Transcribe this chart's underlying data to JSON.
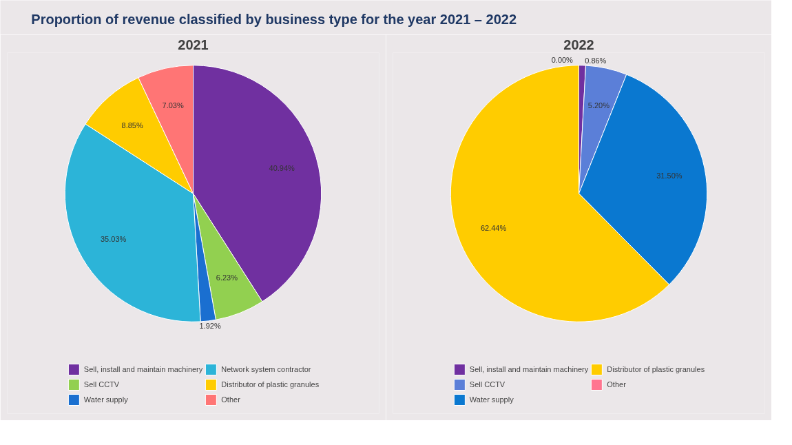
{
  "chart_data": [
    {
      "type": "pie",
      "title": "Proportion of revenue classified by business type for the year 2021 – 2022",
      "subtitle": "2021",
      "categories": [
        "Sell, install and maintain machinery",
        "Sell CCTV",
        "Water supply",
        "Network system contractor",
        "Distributor of plastic granules",
        "Other"
      ],
      "values": [
        40.94,
        6.23,
        1.92,
        35.03,
        8.85,
        7.03
      ],
      "value_labels": [
        "40.94%",
        "6.23%",
        "1.92%",
        "35.03%",
        "8.85%",
        "7.03%"
      ],
      "colors": [
        "#7030a0",
        "#92d050",
        "#1a6fd0",
        "#2cb4d8",
        "#ffcc00",
        "#ff7575"
      ],
      "legend": "bottom"
    },
    {
      "type": "pie",
      "title": "2022",
      "categories": [
        "Sell, install and maintain machinery",
        "Sell CCTV",
        "Water supply",
        "Distributor of plastic granules",
        "Other"
      ],
      "values": [
        0.86,
        5.2,
        31.5,
        62.44,
        0.0
      ],
      "value_labels": [
        "0.86%",
        "5.20%",
        "31.50%",
        "62.44%",
        "0.00%"
      ],
      "colors": [
        "#7030a0",
        "#5b7fd8",
        "#0a78d0",
        "#ffcc00",
        "#ff7590"
      ],
      "legend": "bottom"
    }
  ]
}
